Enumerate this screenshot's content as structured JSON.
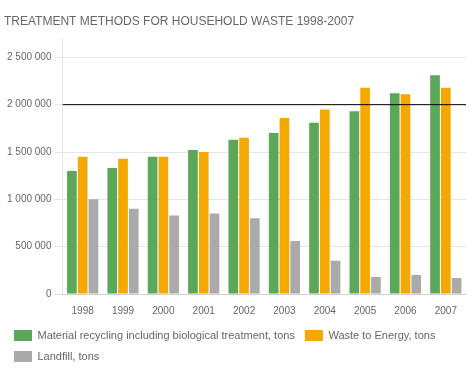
{
  "chart_data": {
    "type": "bar",
    "title": "TREATMENT METHODS FOR HOUSEHOLD WASTE 1998-2007",
    "categories": [
      "1998",
      "1999",
      "2000",
      "2001",
      "2002",
      "2003",
      "2004",
      "2005",
      "2006",
      "2007"
    ],
    "series": [
      {
        "name": "Material recycling including biological treatment, tons",
        "color": "#5BA85A",
        "values": [
          1300000,
          1330000,
          1450000,
          1520000,
          1630000,
          1700000,
          1810000,
          1930000,
          2120000,
          2310000
        ]
      },
      {
        "name": "Waste to Energy, tons",
        "color": "#F5A800",
        "values": [
          1450000,
          1430000,
          1450000,
          1500000,
          1650000,
          1860000,
          1950000,
          2180000,
          2110000,
          2180000
        ]
      },
      {
        "name": "Landfill, tons",
        "color": "#AAAAAA",
        "values": [
          1000000,
          900000,
          830000,
          850000,
          800000,
          560000,
          350000,
          180000,
          200000,
          170000
        ]
      }
    ],
    "reference_line": 2000000,
    "ylim": [
      0,
      2700000
    ],
    "yticks": [
      0,
      {
        "value": 500000,
        "label": "500 000"
      },
      {
        "value": 1000000,
        "label": "1 000 000"
      },
      {
        "value": 1500000,
        "label": "1 500 000"
      },
      {
        "value": 2000000,
        "label": "2 000 000"
      },
      {
        "value": 2500000,
        "label": "2 500 000"
      }
    ],
    "grid": true,
    "legend": "bottom"
  }
}
